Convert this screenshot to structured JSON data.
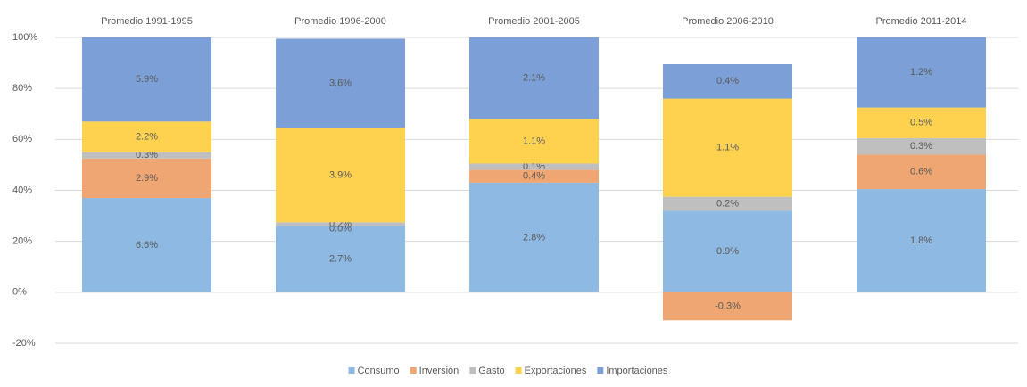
{
  "chart_data": {
    "type": "stacked_bar",
    "categories": [
      "Promedio 1991-1995",
      "Promedio 1996-2000",
      "Promedio 2001-2005",
      "Promedio 2006-2010",
      "Promedio 2011-2014"
    ],
    "series": [
      {
        "name": "Consumo",
        "color": "#8db9e2",
        "values": [
          37,
          26,
          43,
          32,
          40.5
        ],
        "annotations": [
          "6.6%",
          "2.7%",
          "2.8%",
          "0.9%",
          "1.8%"
        ]
      },
      {
        "name": "Inversión",
        "color": "#f0a672",
        "values": [
          15.5,
          0,
          5,
          -11,
          13.5
        ],
        "annotations": [
          "2.9%",
          "0.0%",
          "0.4%",
          "-0.3%",
          "0.6%"
        ]
      },
      {
        "name": "Gasto",
        "color": "#bfbfbf",
        "values": [
          2.5,
          1.5,
          2.5,
          5.5,
          6.5
        ],
        "annotations": [
          "0.3%",
          "0.2%",
          "0.1%",
          "0.2%",
          "0.3%"
        ]
      },
      {
        "name": "Exportaciones",
        "color": "#fed24f",
        "values": [
          12,
          37,
          17.5,
          38.5,
          12
        ],
        "annotations": [
          "2.2%",
          "3.9%",
          "1.1%",
          "1.1%",
          "0.5%"
        ]
      },
      {
        "name": "Importaciones",
        "color": "#7b9fd6",
        "values": [
          33,
          35,
          32,
          13.5,
          27.5
        ],
        "annotations": [
          "5.9%",
          "3.6%",
          "2.1%",
          "0.4%",
          "1.2%"
        ]
      }
    ],
    "ylim": [
      -20,
      100
    ],
    "yticks": [
      {
        "value": -20,
        "label": "-20%"
      },
      {
        "value": 0,
        "label": "0%"
      },
      {
        "value": 20,
        "label": "20%"
      },
      {
        "value": 40,
        "label": "40%"
      },
      {
        "value": 60,
        "label": "60%"
      },
      {
        "value": 80,
        "label": "80%"
      },
      {
        "value": 100,
        "label": "100%"
      }
    ],
    "grid": true,
    "legend": "bottom"
  }
}
